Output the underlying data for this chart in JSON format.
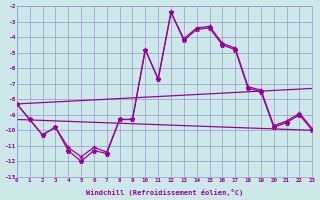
{
  "xlabel": "Windchill (Refroidissement éolien,°C)",
  "background_color": "#cce8e8",
  "grid_color": "#9999cc",
  "line_color": "#990099",
  "xlim": [
    0,
    23
  ],
  "ylim": [
    -13,
    -2
  ],
  "xticks": [
    0,
    1,
    2,
    3,
    4,
    5,
    6,
    7,
    8,
    9,
    10,
    11,
    12,
    13,
    14,
    15,
    16,
    17,
    18,
    19,
    20,
    21,
    22,
    23
  ],
  "yticks": [
    -2,
    -3,
    -4,
    -5,
    -6,
    -7,
    -8,
    -9,
    -10,
    -11,
    -12,
    -13
  ],
  "series1_x": [
    0,
    1,
    2,
    3,
    4,
    5,
    6,
    7,
    8,
    9,
    10,
    11,
    12,
    13,
    14,
    15,
    16,
    17,
    18,
    19,
    20,
    21,
    22,
    23
  ],
  "series1_y": [
    -8.3,
    -9.3,
    -10.3,
    -9.8,
    -11.3,
    -12.0,
    -11.3,
    -11.5,
    -9.3,
    -9.3,
    -4.8,
    -6.7,
    -2.4,
    -4.2,
    -3.5,
    -3.4,
    -4.5,
    -4.8,
    -7.3,
    -7.5,
    -9.8,
    -9.5,
    -9.0,
    -10.0
  ],
  "series2_x": [
    0,
    1,
    2,
    3,
    4,
    5,
    6,
    7,
    8,
    9,
    10,
    11,
    12,
    13,
    14,
    15,
    16,
    17,
    18,
    19,
    20,
    21,
    22,
    23
  ],
  "series2_y": [
    -8.3,
    -9.3,
    -10.3,
    -9.8,
    -11.1,
    -11.7,
    -11.1,
    -11.4,
    -9.3,
    -9.3,
    -4.8,
    -6.7,
    -2.4,
    -4.1,
    -3.4,
    -3.3,
    -4.4,
    -4.7,
    -7.2,
    -7.4,
    -9.7,
    -9.4,
    -8.9,
    -9.9
  ],
  "trend1_x": [
    0,
    23
  ],
  "trend1_y": [
    -8.3,
    -7.3
  ],
  "trend2_x": [
    0,
    23
  ],
  "trend2_y": [
    -9.3,
    -10.0
  ]
}
